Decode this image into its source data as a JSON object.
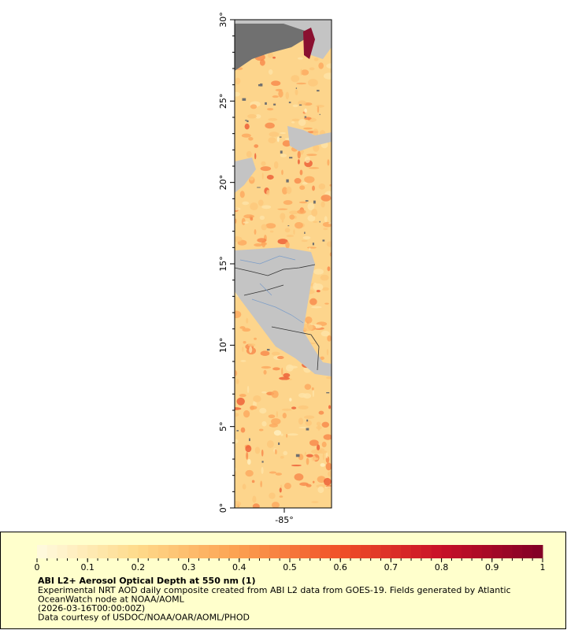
{
  "map": {
    "lat_labels": [
      "0°",
      "5°",
      "10°",
      "15°",
      "20°",
      "25°",
      "30°"
    ],
    "lon_labels": [
      "-85°"
    ],
    "colorbar": {
      "ticks": [
        0,
        0.1,
        0.2,
        0.3,
        0.4,
        0.5,
        0.6,
        0.7,
        0.8,
        0.9,
        1
      ]
    },
    "legend": {
      "title": "ABI L2+ Aerosol Optical Depth at 550 nm (1)",
      "lines": [
        "Experimental NRT AOD daily composite created from ABI L2 data from GOES-19. Fields generated by Atlantic",
        "OceanWatch node at NOAA/AOML",
        "(2026-03-16T00:00:00Z)",
        "Data courtesy of USDOC/NOAA/OAR/AOML/PHOD"
      ]
    }
  }
}
